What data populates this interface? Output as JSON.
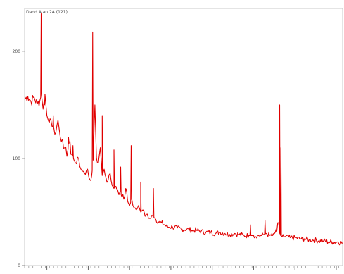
{
  "chart_data": {
    "type": "line",
    "title": "Dadd Alan 2A (121)",
    "xlabel": "",
    "ylabel": "",
    "xlim": [
      0,
      100
    ],
    "ylim": [
      0,
      240
    ],
    "yticks": [
      {
        "value": 0,
        "label": "0"
      },
      {
        "value": 100,
        "label": "100"
      },
      {
        "value": 200,
        "label": "200"
      }
    ],
    "x_major_ticks": [
      7,
      20,
      33,
      46,
      59,
      72,
      85,
      98
    ],
    "grid": false,
    "series": [
      {
        "color": "#e00000",
        "x": [
          0,
          1,
          2,
          3,
          4,
          4.8,
          5.3,
          5.8,
          6.4,
          7,
          7.5,
          8,
          8.6,
          9.2,
          9.8,
          10.5,
          11.2,
          11.9,
          12.6,
          13.3,
          14,
          14.8,
          15.6,
          16.3,
          17,
          17.7,
          18.4,
          19.1,
          19.8,
          20.5,
          21.1,
          21.6,
          22.1,
          22.6,
          23.2,
          23.8,
          24.4,
          25,
          25.6,
          26.2,
          26.9,
          27.5,
          28.1,
          28.7,
          29.3,
          30,
          30.6,
          31.2,
          31.8,
          32.4,
          33,
          33.7,
          34.4,
          35.1,
          35.8,
          36.5,
          37.2,
          37.9,
          38.6,
          39.3,
          40,
          41,
          42,
          43,
          44,
          45,
          46.5,
          48,
          49.5,
          51,
          52.5,
          54,
          55.5,
          57,
          58.5,
          60,
          61.5,
          63,
          64.5,
          66,
          67.5,
          69,
          70.5,
          72,
          73.5,
          74.5,
          75.3,
          76,
          77,
          78,
          78.8,
          79.3,
          79.6,
          79.9,
          80.2,
          80.5,
          81,
          82,
          83.5,
          85,
          86.5,
          88,
          89.5,
          91,
          92.5,
          94,
          95.5,
          97,
          98.5,
          100
        ],
        "y": [
          155,
          158,
          153,
          157,
          151,
          154,
          160,
          146,
          160,
          140,
          135,
          137,
          130,
          128,
          124,
          136,
          120,
          118,
          110,
          102,
          115,
          104,
          98,
          95,
          100,
          90,
          88,
          85,
          90,
          80,
          84,
          100,
          150,
          100,
          96,
          110,
          84,
          90,
          82,
          79,
          86,
          75,
          72,
          74,
          70,
          69,
          64,
          62,
          72,
          60,
          56,
          62,
          54,
          52,
          56,
          50,
          52,
          46,
          48,
          44,
          47,
          44,
          41,
          40,
          38,
          36,
          36,
          35,
          34,
          34,
          33,
          33,
          32,
          31,
          31,
          30,
          31,
          30,
          29,
          30,
          29,
          28,
          28,
          28,
          28,
          28,
          29,
          30,
          28,
          28,
          31,
          32,
          40,
          40,
          30,
          28,
          27,
          27,
          26,
          26,
          25,
          25,
          24,
          24,
          23,
          23,
          22,
          22,
          22,
          21
        ],
        "peaks": [
          {
            "x": 5.2,
            "y": 235
          },
          {
            "x": 6.3,
            "y": 150
          },
          {
            "x": 9.0,
            "y": 140
          },
          {
            "x": 13.8,
            "y": 120
          },
          {
            "x": 15.2,
            "y": 112
          },
          {
            "x": 21.4,
            "y": 218
          },
          {
            "x": 24.4,
            "y": 140
          },
          {
            "x": 28.1,
            "y": 108
          },
          {
            "x": 30.2,
            "y": 92
          },
          {
            "x": 33.5,
            "y": 112
          },
          {
            "x": 36.5,
            "y": 78
          },
          {
            "x": 40.5,
            "y": 72
          },
          {
            "x": 71.0,
            "y": 38
          },
          {
            "x": 75.6,
            "y": 42
          },
          {
            "x": 80.2,
            "y": 150
          },
          {
            "x": 80.6,
            "y": 110
          }
        ]
      }
    ]
  }
}
